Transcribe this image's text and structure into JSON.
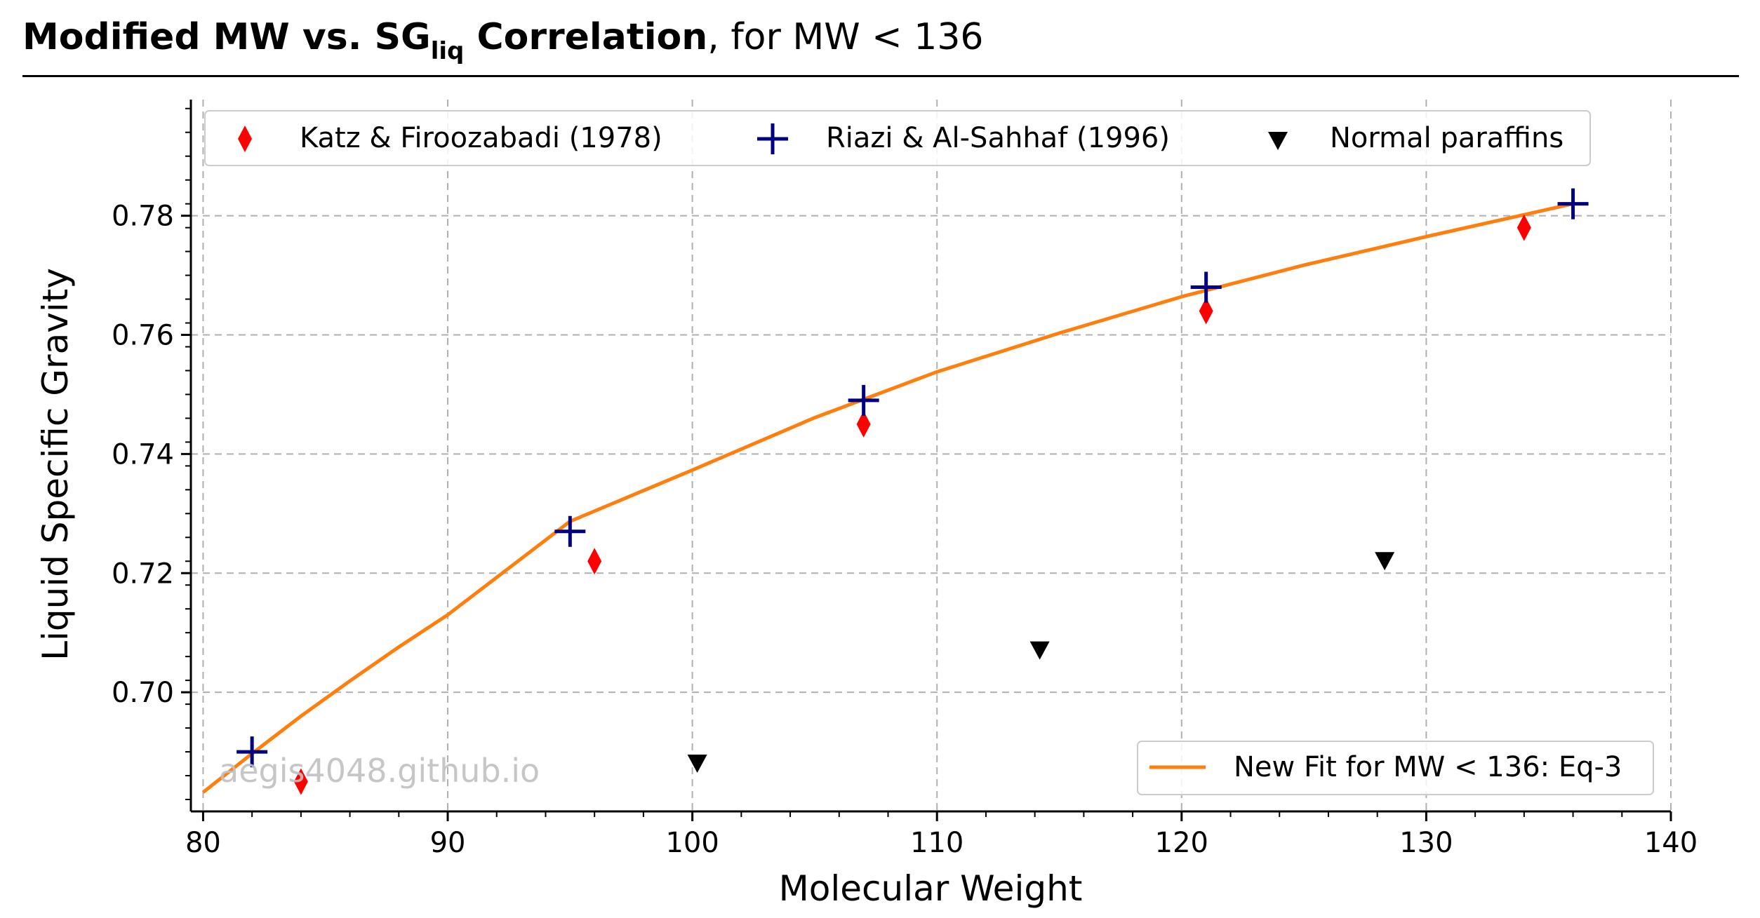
{
  "title": {
    "main_prefix": "Modified MW vs. ",
    "symbol": "SG",
    "subscript": "liq",
    "main_suffix": " Correlation",
    "rest": ", for MW < 136"
  },
  "watermark": "aegis4048.github.io",
  "chart_data": {
    "type": "scatter",
    "xlabel": "Molecular Weight",
    "ylabel": "Liquid Specific Gravity",
    "xlim": [
      79.5,
      140
    ],
    "ylim": [
      0.68,
      0.7995
    ],
    "xticks": [
      80,
      90,
      100,
      110,
      120,
      130,
      140
    ],
    "yticks": [
      0.7,
      0.72,
      0.74,
      0.76,
      0.78
    ],
    "xtick_labels": [
      "80",
      "90",
      "100",
      "110",
      "120",
      "130",
      "140"
    ],
    "ytick_labels": [
      "0.70",
      "0.72",
      "0.74",
      "0.76",
      "0.78"
    ],
    "grid": true,
    "series": [
      {
        "name": "Katz & Firoozabadi (1978)",
        "marker": "thin_diamond",
        "color": "#ff0000",
        "x": [
          84,
          96,
          107,
          121,
          134
        ],
        "y": [
          0.685,
          0.722,
          0.745,
          0.764,
          0.778
        ]
      },
      {
        "name": "Riazi & Al-Sahhaf (1996)",
        "marker": "plus",
        "color": "#000080",
        "x": [
          82,
          95,
          107,
          121,
          136
        ],
        "y": [
          0.69,
          0.727,
          0.749,
          0.768,
          0.782
        ]
      },
      {
        "name": "Normal paraffins",
        "marker": "triangle_down",
        "color": "#000000",
        "x": [
          100.2,
          114.2,
          128.3
        ],
        "y": [
          0.688,
          0.707,
          0.722
        ]
      }
    ],
    "fit": {
      "name": "New Fit for MW < 136: Eq-3",
      "color": "#ff7f0e",
      "x": [
        80,
        82,
        84,
        86,
        88,
        90,
        95,
        100,
        105,
        110,
        115,
        120,
        125,
        130,
        136
      ],
      "y": [
        0.6832,
        0.6897,
        0.696,
        0.7019,
        0.7076,
        0.713,
        0.7287,
        0.7373,
        0.7461,
        0.7538,
        0.7603,
        0.7664,
        0.7717,
        0.7765,
        0.782
      ]
    },
    "legend_top_placement": "upper center",
    "legend_bottom_placement": "lower right"
  }
}
